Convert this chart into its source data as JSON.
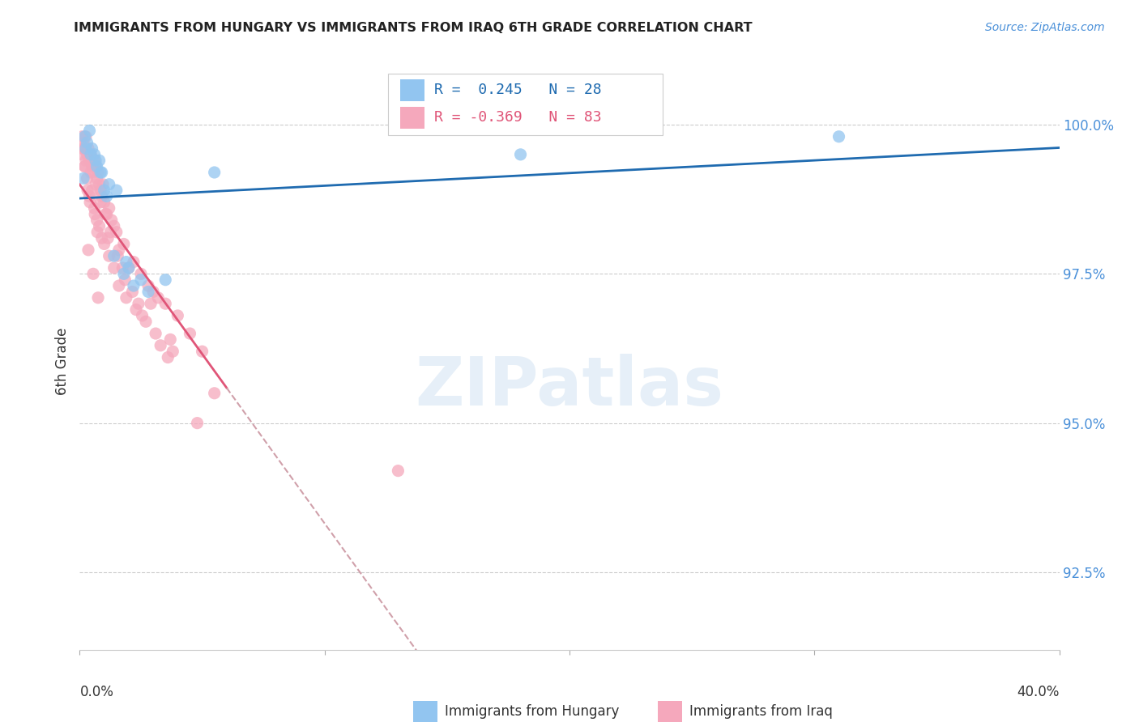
{
  "title": "IMMIGRANTS FROM HUNGARY VS IMMIGRANTS FROM IRAQ 6TH GRADE CORRELATION CHART",
  "source": "Source: ZipAtlas.com",
  "ylabel": "6th Grade",
  "y_ticks": [
    92.5,
    95.0,
    97.5,
    100.0
  ],
  "y_tick_labels": [
    "92.5%",
    "95.0%",
    "97.5%",
    "100.0%"
  ],
  "xlim": [
    0.0,
    40.0
  ],
  "ylim": [
    91.2,
    101.0
  ],
  "legend_r_hungary": "0.245",
  "legend_n_hungary": "28",
  "legend_r_iraq": "-0.369",
  "legend_n_iraq": "83",
  "hungary_color": "#92C5F0",
  "iraq_color": "#F5A8BC",
  "hungary_line_color": "#1F6BB0",
  "iraq_line_color": "#E05578",
  "iraq_line_dash_color": "#D0A0AA",
  "watermark": "ZIPatlas",
  "hungary_x": [
    0.2,
    0.3,
    0.4,
    0.5,
    0.6,
    0.7,
    0.8,
    0.9,
    1.0,
    1.2,
    1.5,
    1.8,
    2.0,
    2.5,
    0.25,
    0.45,
    0.65,
    0.85,
    1.1,
    1.4,
    1.9,
    2.2,
    2.8,
    5.5,
    18.0,
    31.0,
    0.15,
    3.5
  ],
  "hungary_y": [
    99.8,
    99.7,
    99.9,
    99.6,
    99.5,
    99.3,
    99.4,
    99.2,
    98.9,
    99.0,
    98.9,
    97.5,
    97.6,
    97.4,
    99.6,
    99.5,
    99.4,
    99.2,
    98.8,
    97.8,
    97.7,
    97.3,
    97.2,
    99.2,
    99.5,
    99.8,
    99.1,
    97.4
  ],
  "iraq_x": [
    0.1,
    0.15,
    0.2,
    0.25,
    0.3,
    0.35,
    0.4,
    0.45,
    0.5,
    0.55,
    0.6,
    0.65,
    0.7,
    0.75,
    0.8,
    0.85,
    0.9,
    0.95,
    1.0,
    1.1,
    1.2,
    1.3,
    1.4,
    1.5,
    1.6,
    1.8,
    2.0,
    2.2,
    2.5,
    2.8,
    3.0,
    3.2,
    3.5,
    4.0,
    4.5,
    5.0,
    0.1,
    0.2,
    0.3,
    0.4,
    0.5,
    0.6,
    0.7,
    0.8,
    0.9,
    1.0,
    1.2,
    1.4,
    1.6,
    1.9,
    2.3,
    2.7,
    3.1,
    3.8,
    0.25,
    0.45,
    0.65,
    0.85,
    1.05,
    1.25,
    1.55,
    1.85,
    2.15,
    2.55,
    3.3,
    0.35,
    0.55,
    0.75,
    2.4,
    3.6,
    0.12,
    0.22,
    0.32,
    0.62,
    0.72,
    0.42,
    1.15,
    1.75,
    5.5,
    2.9,
    3.7,
    4.8,
    13.0
  ],
  "iraq_y": [
    99.8,
    99.7,
    99.6,
    99.8,
    99.5,
    99.6,
    99.4,
    99.5,
    99.3,
    99.2,
    99.4,
    99.3,
    99.1,
    99.2,
    99.0,
    98.9,
    98.8,
    99.0,
    98.7,
    98.5,
    98.6,
    98.4,
    98.3,
    98.2,
    97.9,
    98.0,
    97.6,
    97.7,
    97.5,
    97.3,
    97.2,
    97.1,
    97.0,
    96.8,
    96.5,
    96.2,
    99.5,
    99.3,
    99.1,
    98.8,
    98.9,
    98.6,
    98.4,
    98.3,
    98.1,
    98.0,
    97.8,
    97.6,
    97.3,
    97.1,
    96.9,
    96.7,
    96.5,
    96.2,
    99.4,
    99.2,
    99.0,
    98.7,
    98.5,
    98.2,
    97.8,
    97.4,
    97.2,
    96.8,
    96.3,
    97.9,
    97.5,
    97.1,
    97.0,
    96.1,
    99.6,
    99.3,
    98.9,
    98.5,
    98.2,
    98.7,
    98.1,
    97.6,
    95.5,
    97.0,
    96.4,
    95.0,
    94.2
  ],
  "iraq_solid_xmax": 6.0
}
